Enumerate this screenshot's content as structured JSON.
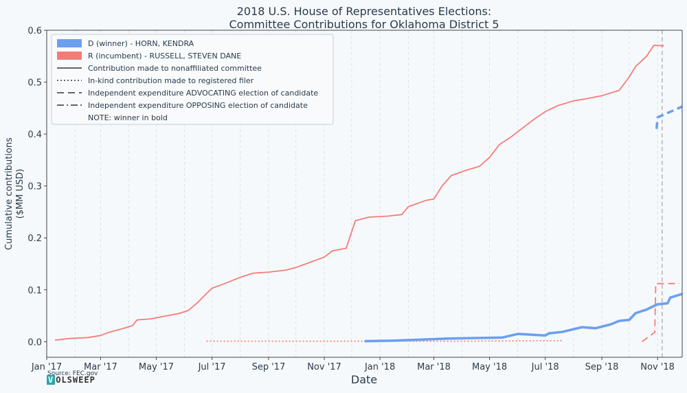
{
  "chart_data": {
    "type": "line",
    "title": "2018 U.S. House of Representatives Elections:",
    "subtitle": "Committee Contributions for Oklahoma District 5",
    "xlabel": "Date",
    "ylabel_line1": "Cumulative contributions",
    "ylabel_line2": "($MM USD)",
    "xlim": [
      "2017-01-01",
      "2018-11-28"
    ],
    "ylim": [
      -0.03,
      0.6
    ],
    "yticks": [
      0.0,
      0.1,
      0.2,
      0.3,
      0.4,
      0.5,
      0.6
    ],
    "ytick_labels": [
      "0.0",
      "0.1",
      "0.2",
      "0.3",
      "0.4",
      "0.5",
      "0.6"
    ],
    "xticks": [
      "2017-01-01",
      "2017-03-01",
      "2017-05-01",
      "2017-07-01",
      "2017-09-01",
      "2017-11-01",
      "2018-01-01",
      "2018-03-01",
      "2018-05-01",
      "2018-07-01",
      "2018-09-01",
      "2018-11-01"
    ],
    "xtick_labels": [
      "Jan '17",
      "Mar '17",
      "May '17",
      "Jul '17",
      "Sep '17",
      "Nov '17",
      "Jan '18",
      "Mar '18",
      "May '18",
      "Jul '18",
      "Sep '18",
      "Nov '18"
    ],
    "election_date": "2018-11-06",
    "source": "Source: FEC.gov",
    "colors": {
      "D": "#6c9ff0",
      "R": "#f47c78",
      "grid": "#c8d2dc",
      "election": "#b8b8b8"
    },
    "legend": {
      "placement": "top-left",
      "entries": [
        {
          "label": "D (winner) - HORN, KENDRA",
          "kind": "patch",
          "color": "#6c9ff0"
        },
        {
          "label": "R (incumbent) - RUSSELL, STEVEN DANE",
          "kind": "patch",
          "color": "#f47c78"
        },
        {
          "label": "Contribution made to nonaffiliated committee",
          "kind": "solid"
        },
        {
          "label": "In-kind contribution made to registered filer",
          "kind": "dotted"
        },
        {
          "label": "Independent expenditure ADVOCATING election of candidate",
          "kind": "dashed"
        },
        {
          "label": "Independent expenditure OPPOSING election of candidate",
          "kind": "dashdot"
        },
        {
          "label": "NOTE: winner in bold",
          "kind": "none"
        }
      ]
    },
    "series": [
      {
        "name": "R (incumbent) - RUSSELL, STEVEN DANE",
        "party": "R",
        "style": "solid",
        "points": [
          [
            "2017-01-10",
            0.003
          ],
          [
            "2017-01-25",
            0.006
          ],
          [
            "2017-02-15",
            0.008
          ],
          [
            "2017-03-01",
            0.012
          ],
          [
            "2017-03-10",
            0.018
          ],
          [
            "2017-03-25",
            0.025
          ],
          [
            "2017-04-05",
            0.031
          ],
          [
            "2017-04-10",
            0.042
          ],
          [
            "2017-04-25",
            0.044
          ],
          [
            "2017-05-10",
            0.049
          ],
          [
            "2017-05-25",
            0.054
          ],
          [
            "2017-06-05",
            0.06
          ],
          [
            "2017-06-15",
            0.075
          ],
          [
            "2017-06-25",
            0.093
          ],
          [
            "2017-07-01",
            0.103
          ],
          [
            "2017-07-15",
            0.112
          ],
          [
            "2017-08-01",
            0.124
          ],
          [
            "2017-08-15",
            0.132
          ],
          [
            "2017-09-01",
            0.134
          ],
          [
            "2017-09-20",
            0.138
          ],
          [
            "2017-10-01",
            0.143
          ],
          [
            "2017-10-15",
            0.152
          ],
          [
            "2017-11-01",
            0.163
          ],
          [
            "2017-11-10",
            0.175
          ],
          [
            "2017-11-25",
            0.18
          ],
          [
            "2017-12-01",
            0.212
          ],
          [
            "2017-12-05",
            0.233
          ],
          [
            "2017-12-20",
            0.24
          ],
          [
            "2018-01-10",
            0.242
          ],
          [
            "2018-01-25",
            0.245
          ],
          [
            "2018-02-01",
            0.26
          ],
          [
            "2018-02-20",
            0.272
          ],
          [
            "2018-03-01",
            0.275
          ],
          [
            "2018-03-10",
            0.3
          ],
          [
            "2018-03-20",
            0.32
          ],
          [
            "2018-04-05",
            0.33
          ],
          [
            "2018-04-20",
            0.338
          ],
          [
            "2018-05-01",
            0.355
          ],
          [
            "2018-05-12",
            0.38
          ],
          [
            "2018-05-25",
            0.395
          ],
          [
            "2018-06-05",
            0.41
          ],
          [
            "2018-06-20",
            0.43
          ],
          [
            "2018-07-01",
            0.443
          ],
          [
            "2018-07-15",
            0.455
          ],
          [
            "2018-08-01",
            0.464
          ],
          [
            "2018-08-15",
            0.468
          ],
          [
            "2018-09-01",
            0.474
          ],
          [
            "2018-09-20",
            0.484
          ],
          [
            "2018-10-01",
            0.51
          ],
          [
            "2018-10-08",
            0.53
          ],
          [
            "2018-10-20",
            0.55
          ],
          [
            "2018-10-28",
            0.571
          ],
          [
            "2018-11-08",
            0.57
          ]
        ]
      },
      {
        "name": "R (incumbent) - RUSSELL, STEVEN DANE",
        "party": "R",
        "style": "dotted",
        "points": [
          [
            "2017-06-25",
            0.001
          ],
          [
            "2017-12-10",
            0.001
          ],
          [
            "2018-04-01",
            0.001
          ],
          [
            "2018-07-20",
            0.002
          ]
        ]
      },
      {
        "name": "R (incumbent) - RUSSELL, STEVEN DANE",
        "party": "R",
        "style": "dashed",
        "points": [
          [
            "2018-10-15",
            0.0
          ],
          [
            "2018-10-29",
            0.018
          ],
          [
            "2018-10-30",
            0.112
          ],
          [
            "2018-11-25",
            0.112
          ]
        ]
      },
      {
        "name": "D (winner) - HORN, KENDRA",
        "party": "D",
        "style": "solid",
        "points": [
          [
            "2017-12-15",
            0.001
          ],
          [
            "2018-01-15",
            0.002
          ],
          [
            "2018-02-15",
            0.004
          ],
          [
            "2018-03-15",
            0.006
          ],
          [
            "2018-04-15",
            0.007
          ],
          [
            "2018-05-15",
            0.008
          ],
          [
            "2018-06-01",
            0.015
          ],
          [
            "2018-07-01",
            0.012
          ],
          [
            "2018-07-05",
            0.016
          ],
          [
            "2018-07-20",
            0.019
          ],
          [
            "2018-08-10",
            0.028
          ],
          [
            "2018-08-25",
            0.026
          ],
          [
            "2018-09-10",
            0.033
          ],
          [
            "2018-09-20",
            0.04
          ],
          [
            "2018-10-01",
            0.042
          ],
          [
            "2018-10-08",
            0.055
          ],
          [
            "2018-10-20",
            0.062
          ],
          [
            "2018-11-01",
            0.072
          ],
          [
            "2018-11-12",
            0.074
          ],
          [
            "2018-11-15",
            0.085
          ],
          [
            "2018-11-28",
            0.092
          ]
        ]
      },
      {
        "name": "D (winner) - HORN, KENDRA",
        "party": "D",
        "style": "dashed",
        "points": [
          [
            "2018-10-31",
            0.41
          ],
          [
            "2018-11-01",
            0.432
          ],
          [
            "2018-11-28",
            0.453
          ]
        ]
      }
    ]
  }
}
